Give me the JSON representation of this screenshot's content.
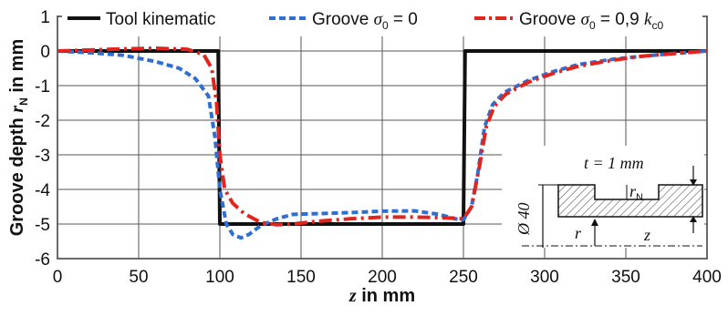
{
  "chart_data": {
    "type": "line",
    "xlabel_var": "z",
    "xlabel_rest": " in mm",
    "ylabel_main": "Groove depth ",
    "ylabel_var": "r",
    "ylabel_sub": "N",
    "ylabel_rest": " in mm",
    "xlim": [
      0,
      400
    ],
    "ylim": [
      -6,
      1
    ],
    "x_ticks": [
      "0",
      "50",
      "100",
      "150",
      "200",
      "250",
      "300",
      "350",
      "400"
    ],
    "y_ticks": [
      "1",
      "0",
      "-1",
      "-2",
      "-3",
      "-4",
      "-5",
      "-6"
    ],
    "grid": true,
    "legend_position": "top",
    "legend": [
      {
        "parts": [
          "Tool kinematic"
        ]
      },
      {
        "parts": [
          "Groove ",
          "σ",
          "0",
          " = 0"
        ]
      },
      {
        "parts": [
          "Groove ",
          "σ",
          "0",
          " = 0,9 ",
          "k",
          "c0"
        ]
      }
    ],
    "series": [
      {
        "color": "#111111",
        "style": "solid",
        "points": [
          [
            0,
            0
          ],
          [
            99,
            0
          ],
          [
            100,
            -5
          ],
          [
            250,
            -5
          ],
          [
            251,
            0
          ],
          [
            400,
            0
          ]
        ]
      },
      {
        "color": "#2f6fd1",
        "style": "dashed",
        "points": [
          [
            0,
            0
          ],
          [
            20,
            -0.05
          ],
          [
            40,
            -0.12
          ],
          [
            60,
            -0.3
          ],
          [
            75,
            -0.5
          ],
          [
            85,
            -0.8
          ],
          [
            93,
            -1.3
          ],
          [
            97,
            -2.5
          ],
          [
            100,
            -4.0
          ],
          [
            104,
            -5.0
          ],
          [
            108,
            -5.3
          ],
          [
            113,
            -5.4
          ],
          [
            118,
            -5.3
          ],
          [
            125,
            -5.05
          ],
          [
            135,
            -4.85
          ],
          [
            145,
            -4.72
          ],
          [
            160,
            -4.7
          ],
          [
            180,
            -4.67
          ],
          [
            200,
            -4.63
          ],
          [
            220,
            -4.62
          ],
          [
            235,
            -4.72
          ],
          [
            245,
            -4.85
          ],
          [
            250,
            -4.88
          ],
          [
            255,
            -4.5
          ],
          [
            259,
            -3.5
          ],
          [
            263,
            -2.2
          ],
          [
            268,
            -1.55
          ],
          [
            275,
            -1.2
          ],
          [
            290,
            -0.85
          ],
          [
            305,
            -0.6
          ],
          [
            320,
            -0.4
          ],
          [
            340,
            -0.25
          ],
          [
            360,
            -0.15
          ],
          [
            380,
            -0.07
          ],
          [
            400,
            0
          ]
        ]
      },
      {
        "color": "#e0241e",
        "style": "dashdot",
        "points": [
          [
            0,
            0
          ],
          [
            20,
            0.03
          ],
          [
            40,
            0.06
          ],
          [
            60,
            0.08
          ],
          [
            80,
            0.05
          ],
          [
            90,
            -0.1
          ],
          [
            95,
            -0.5
          ],
          [
            98,
            -1.5
          ],
          [
            100,
            -3.0
          ],
          [
            103,
            -4.0
          ],
          [
            108,
            -4.4
          ],
          [
            115,
            -4.7
          ],
          [
            125,
            -4.95
          ],
          [
            135,
            -5.02
          ],
          [
            145,
            -5.0
          ],
          [
            160,
            -4.92
          ],
          [
            180,
            -4.85
          ],
          [
            200,
            -4.8
          ],
          [
            220,
            -4.8
          ],
          [
            240,
            -4.82
          ],
          [
            250,
            -4.85
          ],
          [
            255,
            -4.5
          ],
          [
            260,
            -3.3
          ],
          [
            264,
            -2.2
          ],
          [
            269,
            -1.6
          ],
          [
            276,
            -1.25
          ],
          [
            290,
            -0.9
          ],
          [
            305,
            -0.65
          ],
          [
            320,
            -0.45
          ],
          [
            340,
            -0.28
          ],
          [
            360,
            -0.15
          ],
          [
            380,
            -0.07
          ],
          [
            400,
            0
          ]
        ]
      }
    ],
    "inset": {
      "t_label": "t = 1 mm",
      "r_label": "r",
      "r_sub": "N",
      "diameter_label": "Ø 40",
      "r_axis": "r",
      "z_axis": "z"
    }
  }
}
